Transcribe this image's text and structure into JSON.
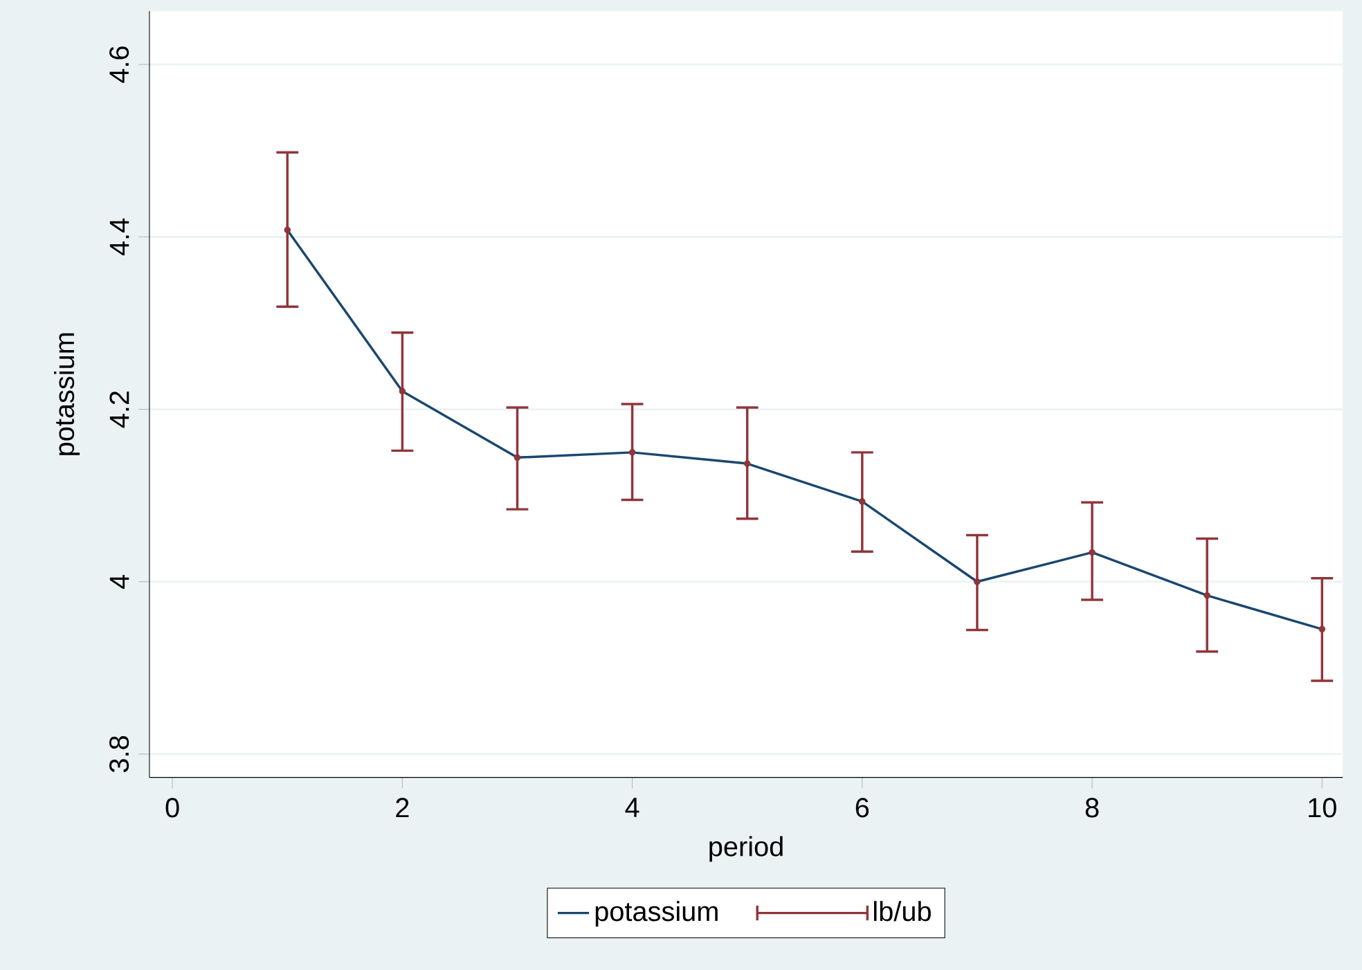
{
  "chart_data": {
    "type": "line",
    "xlabel": "period",
    "ylabel": "potassium",
    "x": [
      1,
      2,
      3,
      4,
      5,
      6,
      7,
      8,
      9,
      10
    ],
    "series": [
      {
        "name": "potassium",
        "color": "#1a476f",
        "values": [
          4.408,
          4.221,
          4.144,
          4.15,
          4.137,
          4.093,
          4.0,
          4.034,
          3.984,
          3.945
        ]
      },
      {
        "name": "lb/ub",
        "type": "scatter",
        "marker": "circle",
        "color": "#90353b",
        "values": [
          4.408,
          4.221,
          4.144,
          4.15,
          4.137,
          4.093,
          4.0,
          4.034,
          3.984,
          3.945
        ],
        "errors": [
          [
            4.319,
            4.498
          ],
          [
            4.152,
            4.289
          ],
          [
            4.084,
            4.202
          ],
          [
            4.095,
            4.206
          ],
          [
            4.073,
            4.202
          ],
          [
            4.035,
            4.15
          ],
          [
            3.944,
            4.054
          ],
          [
            3.979,
            4.092
          ],
          [
            3.919,
            4.05
          ],
          [
            3.885,
            4.004
          ]
        ]
      }
    ],
    "xlim": [
      -0.2,
      10.18
    ],
    "ylim": [
      3.773,
      4.662
    ],
    "xticks": [
      0,
      2,
      4,
      6,
      8,
      10
    ],
    "yticks": [
      3.8,
      4,
      4.2,
      4.4,
      4.6
    ],
    "grid": "y",
    "legend": "bottom",
    "marker": "none",
    "line_style": "solid"
  }
}
